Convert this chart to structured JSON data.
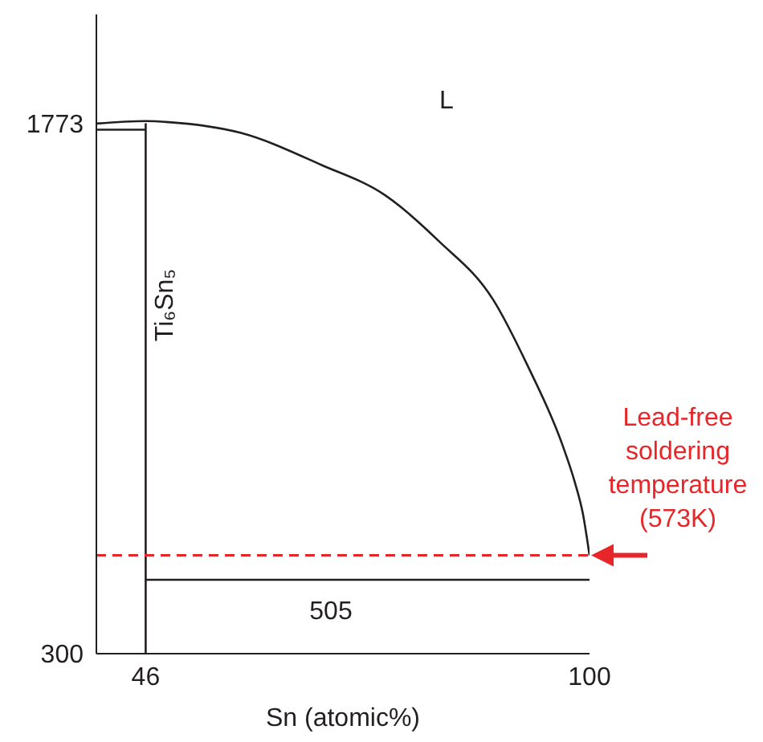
{
  "chart_data": {
    "type": "line",
    "xlabel": "Sn (atomic%)",
    "xlim": [
      40,
      100
    ],
    "xticks": [
      46,
      100
    ],
    "ylim": [
      300,
      2075
    ],
    "yticks": [
      300,
      1773
    ],
    "series": [
      {
        "color": "#231f20",
        "x": [
          40,
          46,
          48.8,
          57.6,
          67.4,
          75.2,
          81.6,
          88.3,
          92.4,
          96.7,
          98.2,
          99.2,
          100
        ],
        "values": [
          1772,
          1779,
          1776,
          1746,
          1657,
          1572,
          1447,
          1282,
          1103,
          880,
          777,
          688,
          573
        ]
      },
      {
        "color": "#231f20",
        "x": [
          40,
          46
        ],
        "values": [
          1755,
          1755
        ]
      },
      {
        "color": "#231f20",
        "x": [
          46,
          46
        ],
        "values": [
          300,
          1773
        ]
      },
      {
        "color": "#231f20",
        "x": [
          46,
          100
        ],
        "values": [
          505,
          505
        ]
      }
    ],
    "ref_lines": [
      {
        "axis": "y",
        "value": 573,
        "label": "Lead-free soldering temperature (573K)",
        "color": "#e8262a",
        "line_style": "dashed"
      }
    ],
    "annotations": [
      "L",
      "Ti₆Sn₅",
      "505"
    ]
  }
}
